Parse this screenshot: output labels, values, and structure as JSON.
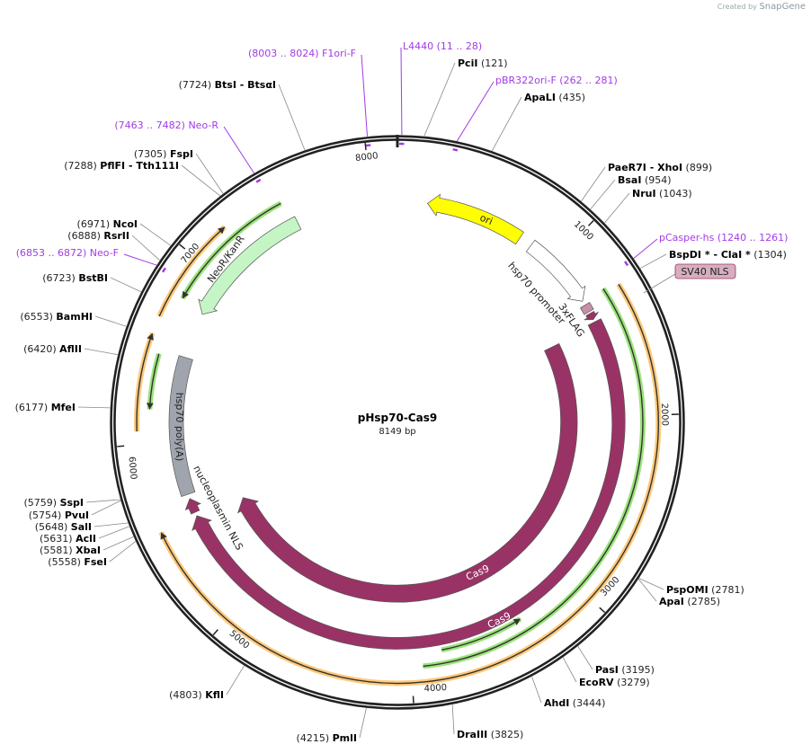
{
  "watermark": {
    "prefix": "Created by",
    "brand": "SnapGene"
  },
  "plasmid": {
    "name": "pHsp70-Cas9",
    "length_label": "8149 bp",
    "length": 8149
  },
  "ticks": [
    "1000",
    "2000",
    "3000",
    "4000",
    "5000",
    "6000",
    "7000",
    "8000"
  ],
  "features": [
    {
      "name": "ori",
      "start": 177,
      "end": 760,
      "dir": "rev",
      "color": "#ffff00",
      "label": "ori"
    },
    {
      "name": "hsp70 promoter",
      "start": 838,
      "end": 1286,
      "dir": "fwd",
      "color": "#ffffff",
      "label": "hsp70 promoter"
    },
    {
      "name": "3xFLAG",
      "start": 1313,
      "end": 1358,
      "dir": "none",
      "color": "#c98fa8",
      "label": "3xFLAG"
    },
    {
      "name": "SV40 NLS",
      "start": 1370,
      "end": 1410,
      "dir": "fwd",
      "color": "#993366",
      "label": "SV40 NLS"
    },
    {
      "name": "Cas9",
      "start": 1426,
      "end": 5546,
      "dir": "fwd",
      "color": "#993366",
      "label": "Cas9"
    },
    {
      "name": "Cas9",
      "start": 1449,
      "end": 5523,
      "dir": "fwd",
      "color": "#993366",
      "label": "Cas9"
    },
    {
      "name": "nucleoplasmin NLS",
      "start": 5569,
      "end": 5655,
      "dir": "fwd",
      "color": "#993366",
      "label": "nucleoplasmin NLS"
    },
    {
      "name": "hsp70 poly(A)",
      "start": 5682,
      "end": 6497,
      "dir": "none",
      "color": "#a0a5ad",
      "label": "hsp70 poly(A)"
    },
    {
      "name": "NeoR/KanR",
      "start": 6768,
      "end": 7549,
      "dir": "rev",
      "color": "#c5f5c5",
      "label": "NeoR/KanR"
    }
  ],
  "orfs": [
    {
      "start": 6791,
      "end": 7515,
      "dir": "rev",
      "color": "#9be37a"
    },
    {
      "start": 6655,
      "end": 7210,
      "dir": "fwd",
      "color": "#ffc97a"
    },
    {
      "start": 6066,
      "end": 6564,
      "dir": "fwd",
      "color": "#ffc97a"
    },
    {
      "start": 6180,
      "end": 6475,
      "dir": "rev",
      "color": "#9be37a"
    },
    {
      "start": 1313,
      "end": 5546,
      "dir": "fwd",
      "color": "#ffc97a"
    },
    {
      "start": 1290,
      "end": 3939,
      "dir": "none",
      "color": "#9be37a"
    },
    {
      "start": 3350,
      "end": 3826,
      "dir": "rev",
      "color": "#9be37a"
    }
  ],
  "enzymes": [
    {
      "name": "PciI",
      "pos": "(121)",
      "bp": 121
    },
    {
      "name": "ApaLI",
      "pos": "(435)",
      "bp": 435
    },
    {
      "name": "PaeR7I  - XhoI",
      "pos": "(899)",
      "bp": 899
    },
    {
      "name": "BsaI",
      "pos": "(954)",
      "bp": 954
    },
    {
      "name": "NruI",
      "pos": "(1043)",
      "bp": 1043
    },
    {
      "name": "BspDI *  - ClaI *",
      "pos": "(1304)",
      "bp": 1304
    },
    {
      "name": "PspOMI",
      "pos": "(2781)",
      "bp": 2781
    },
    {
      "name": "ApaI",
      "pos": "(2785)",
      "bp": 2785
    },
    {
      "name": "PasI",
      "pos": "(3195)",
      "bp": 3195
    },
    {
      "name": "EcoRV",
      "pos": "(3279)",
      "bp": 3279
    },
    {
      "name": "AhdI",
      "pos": "(3444)",
      "bp": 3444
    },
    {
      "name": "DraIII",
      "pos": "(3825)",
      "bp": 3825
    },
    {
      "name": "PmlI",
      "pos": "(4215)",
      "bp": 4215
    },
    {
      "name": "KflI",
      "pos": "(4803)",
      "bp": 4803
    },
    {
      "name": "FseI",
      "pos": "(5558)",
      "bp": 5558
    },
    {
      "name": "XbaI",
      "pos": "(5581)",
      "bp": 5581
    },
    {
      "name": "AclI",
      "pos": "(5631)",
      "bp": 5631
    },
    {
      "name": "SalI",
      "pos": "(5648)",
      "bp": 5648
    },
    {
      "name": "PvuI",
      "pos": "(5754)",
      "bp": 5754
    },
    {
      "name": "SspI",
      "pos": "(5759)",
      "bp": 5759
    },
    {
      "name": "MfeI",
      "pos": "(6177)",
      "bp": 6177
    },
    {
      "name": "AflII",
      "pos": "(6420)",
      "bp": 6420
    },
    {
      "name": "BamHI",
      "pos": "(6553)",
      "bp": 6553
    },
    {
      "name": "BstBI",
      "pos": "(6723)",
      "bp": 6723
    },
    {
      "name": "RsrII",
      "pos": "(6888)",
      "bp": 6888
    },
    {
      "name": "NcoI",
      "pos": "(6971)",
      "bp": 6971
    },
    {
      "name": "PflFI  - Tth111I",
      "pos": "(7288)",
      "bp": 7288
    },
    {
      "name": "FspI",
      "pos": "(7305)",
      "bp": 7305
    },
    {
      "name": "BtsI  - BtsαI",
      "pos": "(7724)",
      "bp": 7724
    }
  ],
  "primers": [
    {
      "name": "F1ori-F",
      "range": "(8003 .. 8024)",
      "bp": 8013
    },
    {
      "name": "L4440",
      "range": "(11 .. 28)",
      "bp": 20
    },
    {
      "name": "pBR322ori-F",
      "range": "(262 .. 281)",
      "bp": 271
    },
    {
      "name": "Neo-R",
      "range": "(7463 .. 7482)",
      "bp": 7472
    },
    {
      "name": "pCasper-hs",
      "range": "(1240 .. 1261)",
      "bp": 1250
    },
    {
      "name": "Neo-F",
      "range": "(6853 .. 6872)",
      "bp": 6862
    }
  ],
  "callouts": {
    "sv40_nls": "SV40 NLS"
  }
}
